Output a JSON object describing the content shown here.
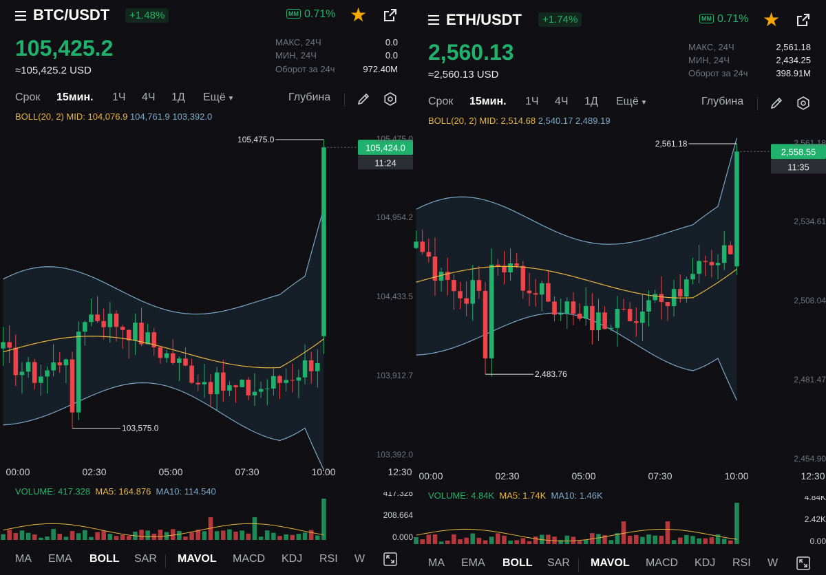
{
  "colors": {
    "up": "#20b26c",
    "down": "#ef454a",
    "mid": "#e8b53f",
    "band": "#7ba9c8",
    "muted": "#71757a",
    "bg": "#101014",
    "star": "#f7a600"
  },
  "panels": [
    {
      "pair": "BTC/USDT",
      "change": "+1.48%",
      "mm_label": "MM",
      "mm_value": "0.71%",
      "last_price": "105,425.2",
      "usd_price": "≈105,425.2 USD",
      "stats": [
        {
          "label": "МАКС, 24Ч",
          "value": "0.0"
        },
        {
          "label": "МИН, 24Ч",
          "value": "0.0"
        },
        {
          "label": "Оборот за 24ч",
          "value": "972.40M"
        }
      ],
      "timeframes": [
        "Срок",
        "15мин.",
        "1Ч",
        "4Ч",
        "1Д"
      ],
      "active_timeframe": 1,
      "more_label": "Ещё",
      "depth_label": "Глубина",
      "boll": {
        "label": "BOLL(20, 2) MID: 104,076.9",
        "upper": "104,761.9",
        "lower": "103,392.0"
      },
      "price_axis": {
        "top_label": "105,475.0",
        "labels": [
          "104,954.2",
          "104,433.5",
          "103,912.7",
          "103,392.0"
        ]
      },
      "time_axis": [
        "00:00",
        "02:30",
        "05:00",
        "07:30",
        "10:00",
        "12:30"
      ],
      "high_marker": "105,475.0",
      "low_marker": "103,575.0",
      "current_price_tag": "105,424.0",
      "countdown": "11:24",
      "volume": {
        "label": "VOLUME: 417.328",
        "ma5": "MA5: 164.876",
        "ma10": "MA10: 114.540",
        "axis": [
          "417.328",
          "208.664",
          "0.000"
        ]
      },
      "chart_data": {
        "type": "candlestick",
        "title": "BTC/USDT 15мин.",
        "x": [
          "00:00",
          "02:30",
          "05:00",
          "07:30",
          "10:00"
        ],
        "ylim": [
          103392.0,
          105475.0
        ],
        "last": 105424.0,
        "high": 105475.0,
        "low": 103575.0,
        "boll_mid": 104076.9,
        "boll_upper": 104761.9,
        "boll_lower": 103392.0,
        "volume_last": 417.328,
        "volume_ma5": 164.876,
        "volume_ma10": 114.54
      },
      "indicators": [
        "MA",
        "EMA",
        "BOLL",
        "SAR",
        "MAVOL",
        "MACD",
        "KDJ",
        "RSI",
        "W"
      ],
      "active_indicators": [
        "BOLL",
        "MAVOL"
      ]
    },
    {
      "pair": "ETH/USDT",
      "change": "+1.74%",
      "mm_label": "MM",
      "mm_value": "0.71%",
      "last_price": "2,560.13",
      "usd_price": "≈2,560.13 USD",
      "stats": [
        {
          "label": "МАКС, 24Ч",
          "value": "2,561.18"
        },
        {
          "label": "МИН, 24Ч",
          "value": "2,434.25"
        },
        {
          "label": "Оборот за 24ч",
          "value": "398.91M"
        }
      ],
      "timeframes": [
        "Срок",
        "15мин.",
        "1Ч",
        "4Ч",
        "1Д"
      ],
      "active_timeframe": 1,
      "more_label": "Ещё",
      "depth_label": "Глубина",
      "boll": {
        "label": "BOLL(20, 2) MID: 2,514.68",
        "upper": "2,540.17",
        "lower": "2,489.19"
      },
      "price_axis": {
        "top_label": "2,561.18",
        "labels": [
          "2,534.61",
          "2,508.04",
          "2,481.47",
          "2,454.90"
        ]
      },
      "time_axis": [
        "00:00",
        "02:30",
        "05:00",
        "07:30",
        "10:00",
        "12:30"
      ],
      "high_marker": "2,561.18",
      "low_marker": "2,483.76",
      "current_price_tag": "2,558.55",
      "countdown": "11:35",
      "volume": {
        "label": "VOLUME: 4.84K",
        "ma5": "MA5: 1.74K",
        "ma10": "MA10: 1.46K",
        "axis": [
          "4.84K",
          "2.42K",
          "0.00"
        ]
      },
      "chart_data": {
        "type": "candlestick",
        "title": "ETH/USDT 15мин.",
        "x": [
          "00:00",
          "02:30",
          "05:00",
          "07:30",
          "10:00"
        ],
        "ylim": [
          2454.9,
          2561.18
        ],
        "last": 2558.55,
        "high": 2561.18,
        "low": 2483.76,
        "boll_mid": 2514.68,
        "boll_upper": 2540.17,
        "boll_lower": 2489.19,
        "volume_last": 4840,
        "volume_ma5": 1740,
        "volume_ma10": 1460
      },
      "indicators": [
        "MA",
        "EMA",
        "BOLL",
        "SAR",
        "MAVOL",
        "MACD",
        "KDJ",
        "RSI",
        "W"
      ],
      "active_indicators": [
        "BOLL",
        "MAVOL"
      ]
    }
  ]
}
